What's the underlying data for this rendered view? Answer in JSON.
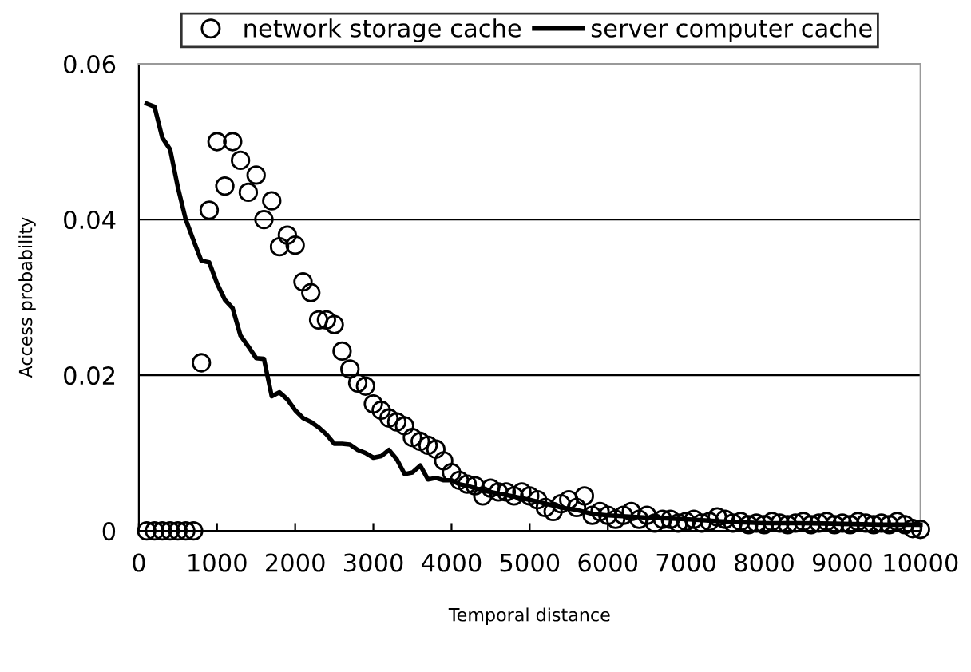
{
  "chart_data": {
    "type": "scatter",
    "xlabel": "Temporal distance",
    "ylabel": "Access probability",
    "xlim": [
      0,
      10000
    ],
    "ylim": [
      0,
      0.06
    ],
    "xticks": [
      0,
      1000,
      2000,
      3000,
      4000,
      5000,
      6000,
      7000,
      8000,
      9000,
      10000
    ],
    "yticks": [
      0,
      0.02,
      0.04,
      0.06
    ],
    "grid": "y",
    "legend": "top",
    "series": [
      {
        "name": "network storage cache",
        "marker": "circle",
        "color": "#000000",
        "x": [
          100,
          200,
          300,
          400,
          500,
          600,
          700,
          800,
          900,
          1000,
          1100,
          1200,
          1300,
          1400,
          1500,
          1600,
          1700,
          1800,
          1900,
          2000,
          2100,
          2200,
          2300,
          2400,
          2500,
          2600,
          2700,
          2800,
          2900,
          3000,
          3100,
          3200,
          3300,
          3400,
          3500,
          3600,
          3700,
          3800,
          3900,
          4000,
          4100,
          4200,
          4300,
          4400,
          4500,
          4600,
          4700,
          4800,
          4900,
          5000,
          5100,
          5200,
          5300,
          5400,
          5500,
          5600,
          5700,
          5800,
          5900,
          6000,
          6100,
          6200,
          6300,
          6400,
          6500,
          6600,
          6700,
          6800,
          6900,
          7000,
          7100,
          7200,
          7300,
          7400,
          7500,
          7600,
          7700,
          7800,
          7900,
          8000,
          8100,
          8200,
          8300,
          8400,
          8500,
          8600,
          8700,
          8800,
          8900,
          9000,
          9100,
          9200,
          9300,
          9400,
          9500,
          9600,
          9700,
          9800,
          9900,
          10000
        ],
        "values": [
          0,
          0,
          0,
          0,
          0,
          0,
          0,
          0.0216,
          0.0412,
          0.05,
          0.0443,
          0.05,
          0.0476,
          0.0435,
          0.0457,
          0.04,
          0.0424,
          0.0365,
          0.038,
          0.0367,
          0.032,
          0.0306,
          0.0271,
          0.0271,
          0.0265,
          0.0231,
          0.0208,
          0.019,
          0.0186,
          0.0163,
          0.0155,
          0.0145,
          0.014,
          0.0135,
          0.012,
          0.0115,
          0.011,
          0.0105,
          0.009,
          0.0075,
          0.0065,
          0.006,
          0.0058,
          0.0045,
          0.0055,
          0.005,
          0.005,
          0.0045,
          0.005,
          0.0045,
          0.004,
          0.003,
          0.0025,
          0.0035,
          0.004,
          0.003,
          0.0045,
          0.002,
          0.0025,
          0.002,
          0.0015,
          0.002,
          0.0025,
          0.0015,
          0.002,
          0.001,
          0.0015,
          0.0015,
          0.001,
          0.0012,
          0.0015,
          0.001,
          0.0012,
          0.0018,
          0.0015,
          0.001,
          0.0012,
          0.0008,
          0.001,
          0.0008,
          0.0012,
          0.001,
          0.0008,
          0.001,
          0.0012,
          0.0008,
          0.001,
          0.0012,
          0.0008,
          0.001,
          0.0008,
          0.0012,
          0.001,
          0.0008,
          0.001,
          0.0008,
          0.0012,
          0.0008,
          0.0003,
          0.0002
        ]
      },
      {
        "name": "server computer cache",
        "type": "line",
        "marker": "none",
        "line_style": "solid",
        "color": "#000000",
        "x": [
          100,
          200,
          300,
          400,
          500,
          600,
          700,
          800,
          900,
          1000,
          1100,
          1200,
          1300,
          1400,
          1500,
          1600,
          1700,
          1800,
          1900,
          2000,
          2100,
          2200,
          2300,
          2400,
          2500,
          2600,
          2700,
          2800,
          2900,
          3000,
          3100,
          3200,
          3300,
          3400,
          3500,
          3600,
          3700,
          3800,
          3900,
          4000,
          4100,
          4200,
          4300,
          4400,
          4500,
          4600,
          4700,
          4800,
          4900,
          5000,
          5200,
          5400,
          5600,
          5800,
          6000,
          6500,
          7000,
          7500,
          8000,
          8500,
          9000,
          9500,
          10000
        ],
        "values": [
          0.0549,
          0.0545,
          0.0505,
          0.049,
          0.0441,
          0.04,
          0.0373,
          0.0347,
          0.0345,
          0.0318,
          0.0297,
          0.0286,
          0.0251,
          0.0237,
          0.0222,
          0.0221,
          0.0173,
          0.0178,
          0.0169,
          0.0155,
          0.0145,
          0.014,
          0.0133,
          0.0124,
          0.0112,
          0.0112,
          0.0111,
          0.0104,
          0.01,
          0.0094,
          0.0096,
          0.0104,
          0.0092,
          0.0073,
          0.0075,
          0.0084,
          0.0066,
          0.0068,
          0.0065,
          0.0065,
          0.006,
          0.0058,
          0.0055,
          0.0052,
          0.005,
          0.0048,
          0.0046,
          0.0044,
          0.0042,
          0.004,
          0.0035,
          0.003,
          0.0027,
          0.0022,
          0.002,
          0.0017,
          0.0015,
          0.0012,
          0.001,
          0.001,
          0.0009,
          0.0008,
          0.0008
        ]
      }
    ]
  }
}
